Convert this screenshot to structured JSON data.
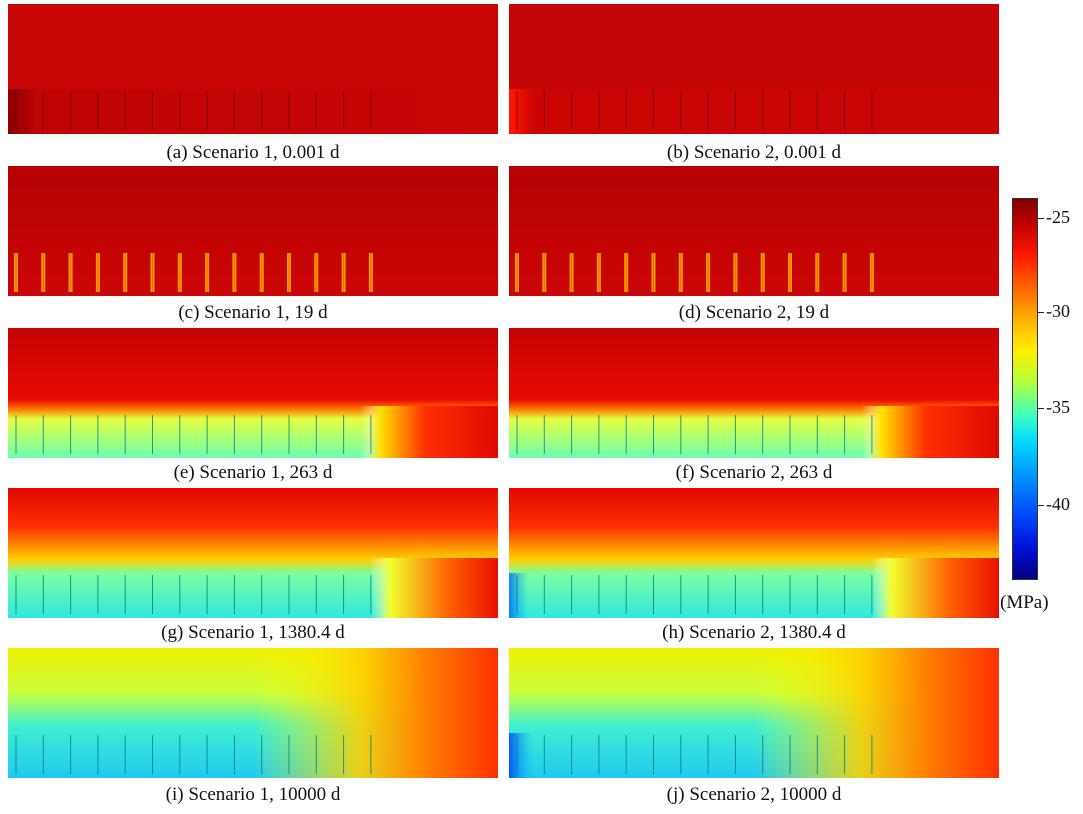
{
  "panels": [
    {
      "caption": "(a) Scenario 1, 0.001 d"
    },
    {
      "caption": "(b) Scenario 2, 0.001 d"
    },
    {
      "caption": "(c) Scenario 1, 19 d"
    },
    {
      "caption": "(d) Scenario 2, 19 d"
    },
    {
      "caption": "(e) Scenario 1, 263 d"
    },
    {
      "caption": "(f) Scenario 2, 263 d"
    },
    {
      "caption": "(g) Scenario 1, 1380.4 d"
    },
    {
      "caption": "(h) Scenario 2, 1380.4 d"
    },
    {
      "caption": "(i) Scenario 1, 10000 d"
    },
    {
      "caption": "(j) Scenario 2, 10000 d"
    }
  ],
  "colorbar": {
    "ticks": [
      "-25",
      "-30",
      "-35",
      "-40"
    ],
    "unit": "(MPa)"
  }
}
